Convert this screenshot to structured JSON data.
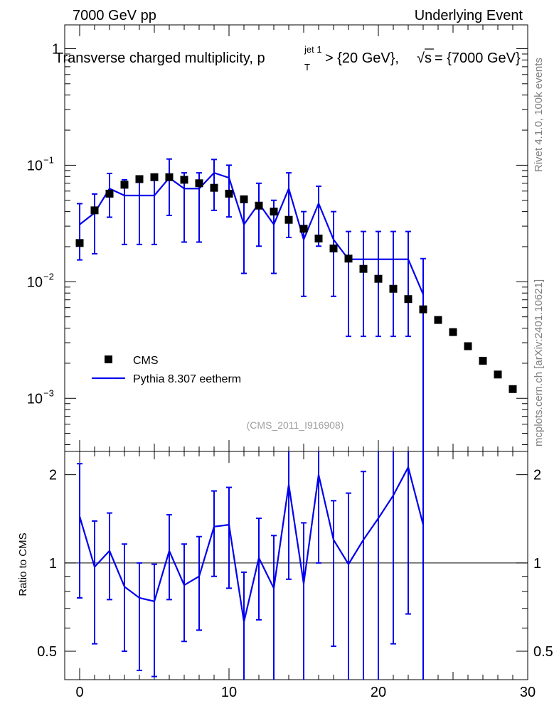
{
  "header": {
    "left_label": "7000 GeV pp",
    "right_label": "Underlying Event",
    "title_main": "Transverse charged multiplicity, p",
    "title_sup": "jet 1",
    "title_sub": "T",
    "title_cut": " > {20 GeV}, ",
    "title_sqrt": "√s",
    "title_energy": " = {7000 GeV}",
    "analysis_id": "(CMS_2011_I916908)"
  },
  "side_text": {
    "rivet": "Rivet 4.1.0,  100k events",
    "mcplots": "mcplots.cern.ch [arXiv:2401.10621]"
  },
  "legend": {
    "data_label": "CMS",
    "mc_label": "Pythia 8.307 eetherm"
  },
  "colors": {
    "data": "#000000",
    "mc": "#0000ee",
    "side_text": "#808080"
  },
  "chart_data": [
    {
      "type": "scatter",
      "panel": "main",
      "yscale": "log",
      "xlim": [
        -1,
        30
      ],
      "ylim": [
        0.00035,
        1.6
      ],
      "x_ticks": [
        0,
        10,
        20,
        30
      ],
      "y_tick_labels": [
        {
          "value": 1,
          "mantissa": "1",
          "exp": ""
        },
        {
          "value": 0.1,
          "mantissa": "10",
          "exp": "−1"
        },
        {
          "value": 0.01,
          "mantissa": "10",
          "exp": "−2"
        },
        {
          "value": 0.001,
          "mantissa": "10",
          "exp": "−3"
        }
      ],
      "series": [
        {
          "name": "CMS",
          "style": "markers",
          "x": [
            0,
            1,
            2,
            3,
            4,
            5,
            6,
            7,
            8,
            9,
            10,
            11,
            12,
            13,
            14,
            15,
            16,
            17,
            18,
            19,
            20,
            21,
            22,
            23,
            24,
            25,
            26,
            27,
            28,
            29
          ],
          "y": [
            0.0215,
            0.041,
            0.057,
            0.068,
            0.076,
            0.079,
            0.079,
            0.075,
            0.07,
            0.064,
            0.057,
            0.051,
            0.045,
            0.04,
            0.034,
            0.0285,
            0.0235,
            0.0193,
            0.0158,
            0.0129,
            0.0106,
            0.0087,
            0.0071,
            0.0058,
            0.0047,
            0.0037,
            0.0028,
            0.0021,
            0.0016,
            0.0012
          ]
        },
        {
          "name": "Pythia 8.307 eetherm",
          "style": "step-line",
          "x": [
            0,
            1,
            2,
            3,
            4,
            5,
            6,
            7,
            8,
            9,
            10,
            11,
            12,
            13,
            14,
            15,
            16,
            17,
            18,
            19,
            20,
            21,
            22,
            23
          ],
          "y": [
            0.031,
            0.039,
            0.063,
            0.055,
            0.055,
            0.055,
            0.078,
            0.063,
            0.063,
            0.086,
            0.078,
            0.031,
            0.047,
            0.031,
            0.063,
            0.023,
            0.047,
            0.023,
            0.0156,
            0.0156,
            0.0156,
            0.0156,
            0.0156,
            0.0078
          ],
          "err_low": [
            0.0154,
            0.0174,
            0.0358,
            0.0209,
            0.0209,
            0.0209,
            0.0371,
            0.0219,
            0.0219,
            0.041,
            0.036,
            0.0118,
            0.0202,
            0.0118,
            0.024,
            0.0075,
            0.0202,
            0.0075,
            0.0034,
            0.0034,
            0.0034,
            0.0034,
            0.0034,
            1e-06
          ],
          "err_high": [
            0.0468,
            0.0566,
            0.085,
            0.075,
            0.075,
            0.075,
            0.113,
            0.086,
            0.086,
            0.112,
            0.1,
            0.05,
            0.07,
            0.05,
            0.086,
            0.04,
            0.066,
            0.04,
            0.027,
            0.027,
            0.027,
            0.027,
            0.027,
            0.0158
          ]
        }
      ]
    },
    {
      "type": "line",
      "panel": "ratio",
      "ylabel": "Ratio to CMS",
      "yscale": "log",
      "xlim": [
        -1,
        30
      ],
      "ylim": [
        0.4,
        2.4
      ],
      "x_ticks": [
        0,
        10,
        20,
        30
      ],
      "y_ticks": [
        0.5,
        1,
        2
      ],
      "reference_line": 1,
      "series": [
        {
          "name": "Pythia 8.307 eetherm / CMS",
          "x": [
            0,
            1,
            2,
            3,
            4,
            5,
            6,
            7,
            8,
            9,
            10,
            11,
            12,
            13,
            14,
            15,
            16,
            17,
            18,
            19,
            20,
            21,
            22,
            23
          ],
          "y": [
            1.44,
            0.97,
            1.1,
            0.83,
            0.76,
            0.74,
            1.1,
            0.84,
            0.9,
            1.33,
            1.35,
            0.63,
            1.04,
            0.82,
            1.85,
            0.85,
            2.0,
            1.2,
            0.99,
            1.2,
            1.42,
            1.7,
            2.12,
            1.35
          ],
          "err_low": [
            0.76,
            0.53,
            0.75,
            0.5,
            0.43,
            0.41,
            0.75,
            0.54,
            0.59,
            0.9,
            0.82,
            0.18,
            0.64,
            0.33,
            0.88,
            0.25,
            1.0,
            0.52,
            0.2,
            0.27,
            0.33,
            0.53,
            0.67,
            0.12
          ],
          "err_high": [
            2.18,
            1.39,
            1.48,
            1.16,
            1.0,
            0.99,
            1.46,
            1.16,
            1.23,
            1.76,
            1.81,
            0.93,
            1.42,
            1.24,
            2.6,
            1.37,
            2.6,
            1.63,
            1.73,
            2.05,
            2.5,
            3.1,
            3.8,
            2.7
          ]
        }
      ]
    }
  ]
}
